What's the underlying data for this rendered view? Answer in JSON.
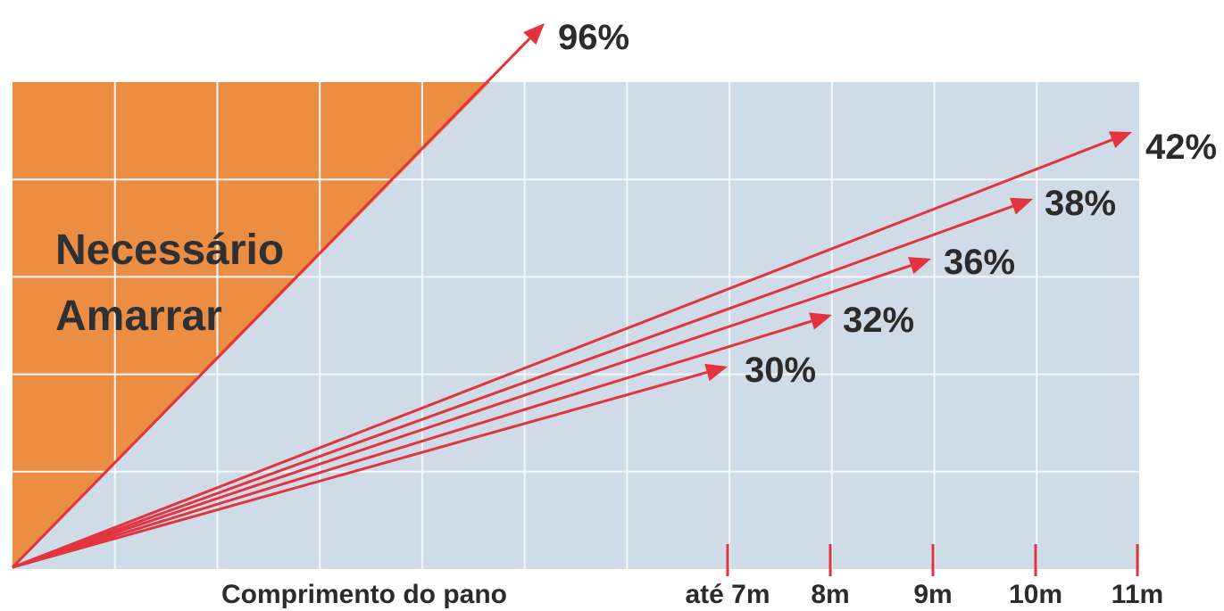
{
  "colors": {
    "plot_background": "#cfdbe6",
    "zone_fill": "#ec8d44",
    "arrow": "#e2343f",
    "grid": "#f4f7fa",
    "text": "#2b2b2b"
  },
  "chart_data": {
    "type": "line",
    "title": "",
    "xlabel": "Comprimento do pano",
    "ylabel": "",
    "grid": true,
    "zone_label_line1": "Necessário",
    "zone_label_line2": "Amarrar",
    "x_ticks": [
      "até 7m",
      "8m",
      "9m",
      "10m",
      "11m"
    ],
    "series": [
      {
        "label": "96%",
        "slope_percent": 96
      },
      {
        "label": "42%",
        "slope_percent": 42
      },
      {
        "label": "38%",
        "slope_percent": 38
      },
      {
        "label": "36%",
        "slope_percent": 36
      },
      {
        "label": "32%",
        "slope_percent": 32
      },
      {
        "label": "30%",
        "slope_percent": 30
      }
    ]
  }
}
